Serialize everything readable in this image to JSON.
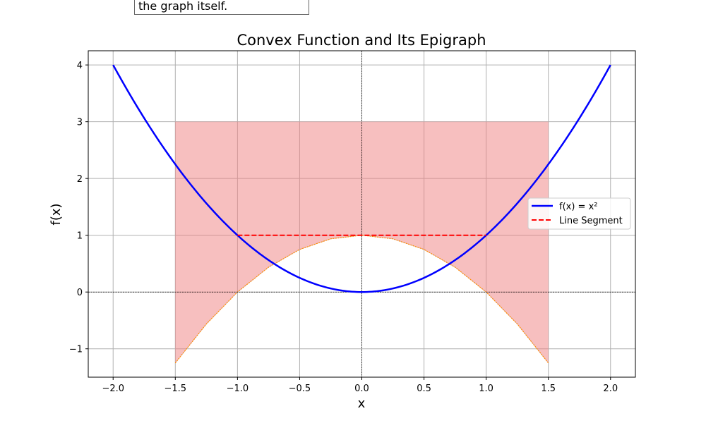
{
  "annotation": "the graph itself.",
  "chart_data": {
    "type": "line",
    "title": "Convex Function and Its Epigraph",
    "xlabel": "x",
    "ylabel": "f(x)",
    "xlim": [
      -2.2,
      2.2
    ],
    "ylim": [
      -1.5,
      4.25
    ],
    "xticks": [
      -2.0,
      -1.5,
      -1.0,
      -0.5,
      0.0,
      0.5,
      1.0,
      1.5,
      2.0
    ],
    "xtick_labels": [
      "−2.0",
      "−1.5",
      "−1.0",
      "−0.5",
      "0.0",
      "0.5",
      "1.0",
      "1.5",
      "2.0"
    ],
    "yticks": [
      -1,
      0,
      1,
      2,
      3,
      4
    ],
    "ytick_labels": [
      "−1",
      "0",
      "1",
      "2",
      "3",
      "4"
    ],
    "grid": true,
    "legend_position": "right",
    "series": [
      {
        "name": "f(x) = x²",
        "style": "solid",
        "color": "#0000ff",
        "x": [
          -2.0,
          -1.75,
          -1.5,
          -1.25,
          -1.0,
          -0.75,
          -0.5,
          -0.25,
          0.0,
          0.25,
          0.5,
          0.75,
          1.0,
          1.25,
          1.5,
          1.75,
          2.0
        ],
        "y": [
          4.0,
          3.0625,
          2.25,
          1.5625,
          1.0,
          0.5625,
          0.25,
          0.0625,
          0.0,
          0.0625,
          0.25,
          0.5625,
          1.0,
          1.5625,
          2.25,
          3.0625,
          4.0
        ]
      },
      {
        "name": "Line Segment",
        "style": "dashed",
        "color": "#ff0000",
        "x": [
          -1.0,
          1.0
        ],
        "y": [
          1.0,
          1.0
        ]
      }
    ],
    "fill_region": {
      "color": "#f08080",
      "opacity": 0.5,
      "edge_color": "#ff8c00",
      "x": [
        -1.5,
        -1.25,
        -1.0,
        -0.75,
        -0.5,
        -0.25,
        0.0,
        0.25,
        0.5,
        0.75,
        1.0,
        1.25,
        1.5
      ],
      "y_lower": [
        -1.25,
        -0.5625,
        0.0,
        0.4375,
        0.75,
        0.9375,
        1.0,
        0.9375,
        0.75,
        0.4375,
        0.0,
        -0.5625,
        -1.25
      ],
      "y_upper": 3.0
    },
    "reference_lines": {
      "x": 0,
      "y": 0,
      "style": "dashed",
      "color": "#000000"
    }
  }
}
